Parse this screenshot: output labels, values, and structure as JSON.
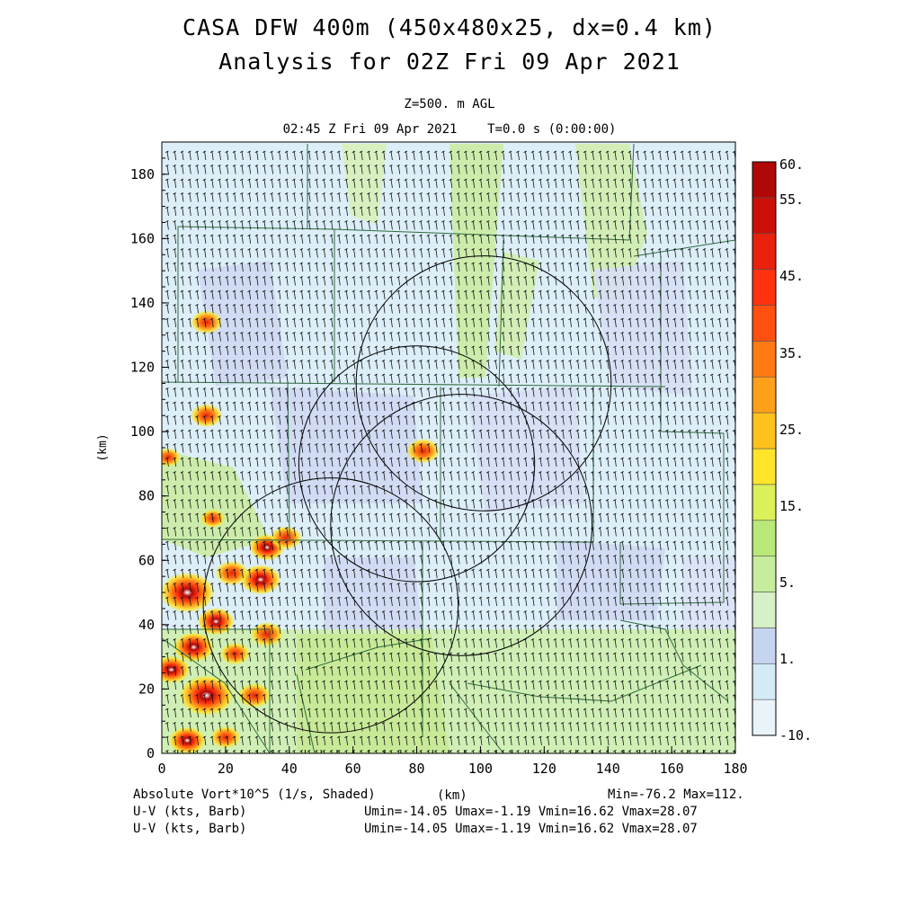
{
  "header": {
    "title_line1": "CASA DFW 400m (450x480x25, dx=0.4 km)",
    "title_line2": "Analysis for 02Z Fri 09 Apr 2021",
    "level": "Z=500. m AGL",
    "time": "02:45 Z Fri 09 Apr 2021    T=0.0 s (0:00:00)"
  },
  "footer": {
    "field_label": "Absolute Vort*10^5 (1/s, Shaded)",
    "x_unit": "(km)",
    "minmax": "Min=-76.2 Max=112.",
    "barb1_label": "U-V (kts, Barb)",
    "barb1_stats": "Umin=-14.05 Umax=-1.19 Vmin=16.62 Vmax=28.07",
    "barb2_label": "U-V (kts, Barb)",
    "barb2_stats": "Umin=-14.05 Umax=-1.19 Vmin=16.62 Vmax=28.07"
  },
  "chart_data": {
    "type": "heatmap",
    "xlabel": "(km)",
    "ylabel": "(km)",
    "xlim": [
      0,
      180
    ],
    "ylim": [
      0,
      190
    ],
    "x_ticks": [
      "0",
      "20",
      "40",
      "60",
      "80",
      "100",
      "120",
      "140",
      "160",
      "180"
    ],
    "y_ticks": [
      "0",
      "20",
      "40",
      "60",
      "80",
      "100",
      "120",
      "140",
      "160",
      "180"
    ],
    "colorbar": {
      "tick_labels": [
        "-10.",
        "1.",
        "5.",
        "15.",
        "25.",
        "35.",
        "45.",
        "55.",
        "60."
      ],
      "levels": [
        -10,
        -5,
        0,
        1,
        2.5,
        5,
        10,
        15,
        20,
        25,
        30,
        35,
        40,
        45,
        50,
        55,
        60
      ],
      "colors": [
        "#e8f4fa",
        "#d4ebf6",
        "#c5d5f0",
        "#d6f0c8",
        "#c6ec9c",
        "#b8e878",
        "#dcf05a",
        "#ffe42a",
        "#ffc21c",
        "#ffa01a",
        "#ff7a12",
        "#ff5010",
        "#ff3210",
        "#e8200c",
        "#cc1008",
        "#b00806"
      ]
    },
    "radar_rings": [
      {
        "cx": 101,
        "cy": 115,
        "r": 40
      },
      {
        "cx": 80,
        "cy": 90,
        "r": 37
      },
      {
        "cx": 94,
        "cy": 71,
        "r": 41
      },
      {
        "cx": 53,
        "cy": 46,
        "r": 40
      }
    ],
    "vorticity_hotspots": [
      {
        "x": 14,
        "y": 134,
        "value": 45
      },
      {
        "x": 14,
        "y": 105,
        "value": 45
      },
      {
        "x": 82,
        "y": 94,
        "value": 50
      },
      {
        "x": 2,
        "y": 92,
        "value": 25
      },
      {
        "x": 16,
        "y": 73,
        "value": 25
      },
      {
        "x": 33,
        "y": 64,
        "value": 55
      },
      {
        "x": 39,
        "y": 67,
        "value": 45
      },
      {
        "x": 8,
        "y": 50,
        "value": 112
      },
      {
        "x": 31,
        "y": 54,
        "value": 70
      },
      {
        "x": 22,
        "y": 56,
        "value": 50
      },
      {
        "x": 17,
        "y": 41,
        "value": 60
      },
      {
        "x": 33,
        "y": 37,
        "value": 50
      },
      {
        "x": 10,
        "y": 33,
        "value": 70
      },
      {
        "x": 23,
        "y": 31,
        "value": 40
      },
      {
        "x": 14,
        "y": 18,
        "value": 112
      },
      {
        "x": 29,
        "y": 18,
        "value": 50
      },
      {
        "x": 3,
        "y": 26,
        "value": 60
      },
      {
        "x": 8,
        "y": 4,
        "value": 60
      },
      {
        "x": 20,
        "y": 5,
        "value": 40
      }
    ],
    "wind_stats": {
      "umin": -14.05,
      "umax": -1.19,
      "vmin": 16.62,
      "vmax": 28.07
    },
    "field_min": -76.2,
    "field_max": 112
  }
}
